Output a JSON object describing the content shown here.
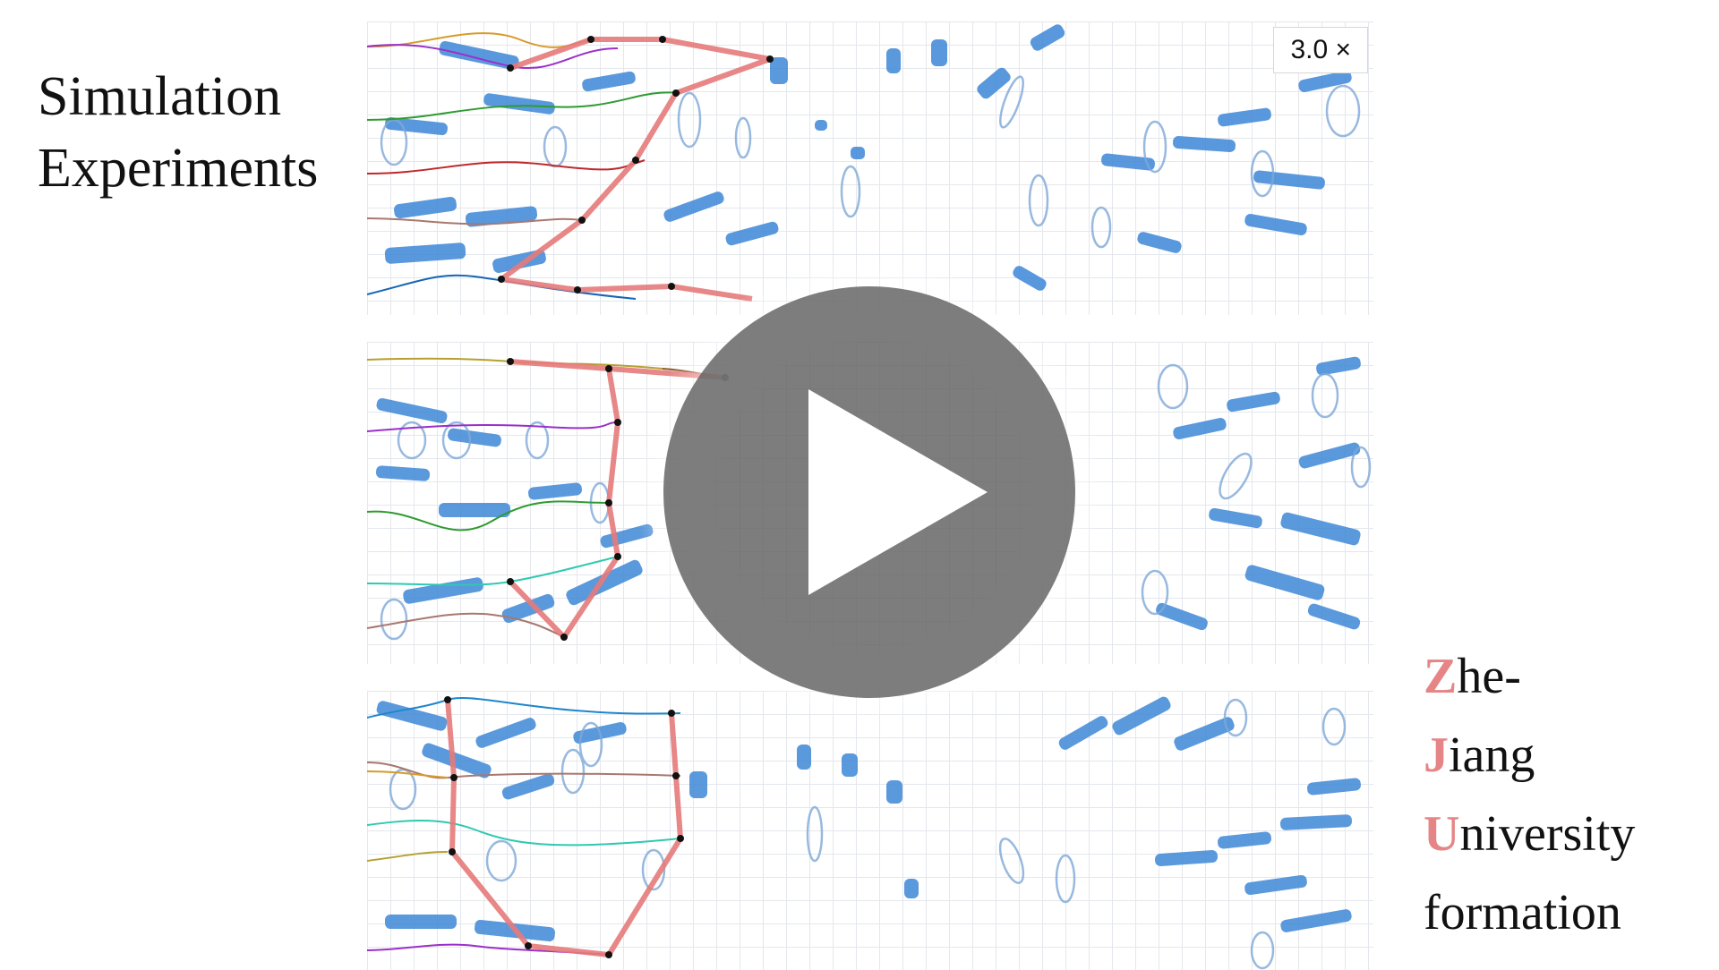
{
  "title": {
    "line1": "Simulation",
    "line2": "Experiments"
  },
  "speed_badge": "3.0 ×",
  "brand": {
    "lines": [
      {
        "initial": "Z",
        "rest": "he-"
      },
      {
        "initial": "J",
        "rest": "iang"
      },
      {
        "initial": "U",
        "rest": "niversity"
      },
      {
        "initial": "",
        "rest": "formation"
      }
    ]
  },
  "colors": {
    "formation_edge": "#e57a7a",
    "obstacle_fill": "#3d87d6",
    "obstacle_outline": "#7fa8d8",
    "grid": "#e4e7ec",
    "play_overlay": "#606060",
    "brand_initial": "#e58585"
  },
  "icons": {
    "play": "play-icon"
  }
}
